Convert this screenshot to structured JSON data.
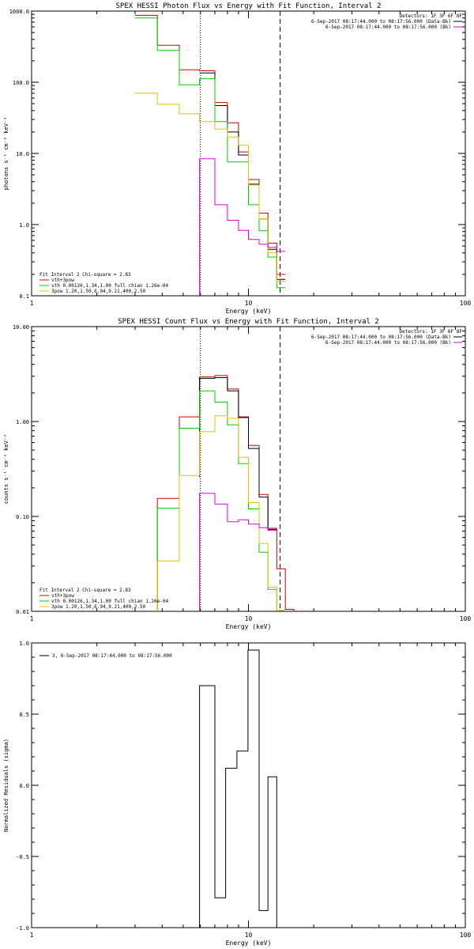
{
  "chart_data": [
    {
      "type": "line",
      "step": true,
      "title": "SPEX HESSI Photon Flux vs Energy with Fit Function, Interval 2",
      "xlabel": "Energy (keV)",
      "ylabel": "photons s⁻¹ cm⁻² keV⁻¹",
      "xscale": "log",
      "yscale": "log",
      "xlim": [
        1,
        100
      ],
      "ylim": [
        0.1,
        1000
      ],
      "xticks": [
        {
          "v": 1,
          "label": "1"
        },
        {
          "v": 10,
          "label": "10"
        },
        {
          "v": 100,
          "label": "100"
        }
      ],
      "yticks": [
        {
          "v": 0.1,
          "label": "0.1"
        },
        {
          "v": 1,
          "label": "1.0"
        },
        {
          "v": 10,
          "label": "10.0"
        },
        {
          "v": 100,
          "label": "100.0"
        },
        {
          "v": 1000,
          "label": "1000.0"
        }
      ],
      "vlines": [
        {
          "x": 6.0,
          "style": "dotted"
        },
        {
          "x": 14.0,
          "style": "dashed"
        }
      ],
      "top_legend": [
        {
          "text": "Detectors: 1F 3F 6F 8F",
          "color": "",
          "marker": false
        },
        {
          "text": "6-Sep-2017 08:17:44.000 to 08:17:56.000 (Data-Bk)",
          "color": "#000000",
          "marker": true
        },
        {
          "text": "6-Sep-2017 08:17:44.000 to 08:17:56.000 (Bk)",
          "color": "#dd00dd",
          "marker": true
        }
      ],
      "bottom_legend": [
        {
          "text": "Fit Interval 2   Chi-square = 2.83",
          "color": "",
          "marker": false
        },
        {
          "text": "vth+3pow",
          "color": "#cc0000",
          "marker": true
        },
        {
          "text": "vth 0.00126,1.34,1.00  full chian 1.26e-04",
          "color": "#00cc00",
          "marker": true
        },
        {
          "text": "3pow 1.20,1.50,6.94,9.21,400,2.50",
          "color": "#e8c000",
          "marker": true
        }
      ],
      "series": [
        {
          "name": "vth+3pow",
          "color": "#cc0000",
          "x": [
            3,
            3.8,
            3.8,
            4.8,
            4.8,
            5.95,
            5.95,
            7.0,
            7.0,
            8.0,
            8.0,
            9.0,
            9.0,
            10.0,
            10.0,
            11.2,
            11.2,
            12.3,
            12.3,
            13.5,
            13.5,
            14.8
          ],
          "y": [
            870,
            870,
            330,
            330,
            150,
            150,
            145,
            145,
            52,
            52,
            27,
            27,
            10.5,
            10.5,
            4.3,
            4.3,
            1.45,
            1.45,
            0.55,
            0.55,
            0.2,
            0.2
          ]
        },
        {
          "name": "Data-Bk",
          "color": "#000000",
          "x": [
            5.95,
            7.0,
            7.0,
            8.0,
            8.0,
            9.0,
            9.0,
            10.0,
            10.0,
            11.2,
            11.2,
            12.3,
            12.3,
            13.5,
            13.5,
            14.8
          ],
          "y": [
            135,
            135,
            47,
            47,
            20,
            20,
            9.5,
            9.5,
            3.7,
            3.7,
            1.2,
            1.2,
            0.45,
            0.45,
            0.17,
            0.17
          ]
        },
        {
          "name": "vth",
          "color": "#00cc00",
          "x": [
            3,
            3.8,
            3.8,
            4.8,
            4.8,
            5.95,
            5.95,
            7.0,
            7.0,
            8.0,
            8.0,
            9.0,
            9.0,
            10.0,
            10.0,
            11.2,
            11.2,
            12.3,
            12.3,
            13.5,
            13.5,
            14.8
          ],
          "y": [
            800,
            800,
            280,
            280,
            92,
            92,
            112,
            112,
            28,
            28,
            7.6,
            7.6,
            7.6,
            7.6,
            1.9,
            1.9,
            0.82,
            0.82,
            0.35,
            0.35,
            0.13,
            0.13
          ]
        },
        {
          "name": "3pow",
          "color": "#e8c000",
          "x": [
            3,
            3.8,
            3.8,
            4.8,
            4.8,
            5.95,
            5.95,
            7.0,
            7.0,
            8.0,
            8.0,
            9.0,
            9.0,
            10.0,
            10.0,
            11.2,
            11.2,
            12.3,
            12.3,
            13.5,
            13.5,
            14.8
          ],
          "y": [
            70,
            70,
            49,
            49,
            36,
            36,
            28,
            28,
            22,
            22,
            17,
            17,
            13,
            13,
            3.6,
            3.6,
            1.2,
            1.2,
            0.4,
            0.4,
            0.16,
            0.16
          ]
        },
        {
          "name": "Bk",
          "color": "#dd00dd",
          "x": [
            5.95,
            5.95,
            7.0,
            7.0,
            8.0,
            8.0,
            9.0,
            9.0,
            10.0,
            10.0,
            11.2,
            11.2,
            12.3,
            12.3,
            13.5,
            13.5,
            14.8
          ],
          "y": [
            0.1,
            8.4,
            8.4,
            1.9,
            1.9,
            1.15,
            1.15,
            0.83,
            0.83,
            0.62,
            0.62,
            0.53,
            0.53,
            0.48,
            0.48,
            0.42,
            0.42
          ]
        }
      ]
    },
    {
      "type": "line",
      "step": true,
      "title": "SPEX HESSI Count Flux vs Energy with Fit Function, Interval 2",
      "xlabel": "Energy (keV)",
      "ylabel": "counts s⁻¹ cm⁻² keV⁻¹",
      "xscale": "log",
      "yscale": "log",
      "xlim": [
        1,
        100
      ],
      "ylim": [
        0.01,
        10
      ],
      "xticks": [
        {
          "v": 1,
          "label": "1"
        },
        {
          "v": 10,
          "label": "10"
        },
        {
          "v": 100,
          "label": "100"
        }
      ],
      "yticks": [
        {
          "v": 0.01,
          "label": "0.01"
        },
        {
          "v": 0.1,
          "label": "0.10"
        },
        {
          "v": 1,
          "label": "1.00"
        },
        {
          "v": 10,
          "label": "10.00"
        }
      ],
      "vlines": [
        {
          "x": 6.0,
          "style": "dotted"
        },
        {
          "x": 14.0,
          "style": "dashed"
        }
      ],
      "top_legend": [
        {
          "text": "Detectors: 1F 3F 6F 8F",
          "color": "",
          "marker": false
        },
        {
          "text": "6-Sep-2017 08:17:44.000 to 08:17:56.000 (Data-Bk)",
          "color": "#000000",
          "marker": true
        },
        {
          "text": "6-Sep-2017 08:17:44.000 to 08:17:56.000 (Bk)",
          "color": "#dd00dd",
          "marker": true
        }
      ],
      "bottom_legend": [
        {
          "text": "Fit Interval 2   Chi-square = 2.83",
          "color": "",
          "marker": false
        },
        {
          "text": "vth+3pow",
          "color": "#cc0000",
          "marker": true
        },
        {
          "text": "vth 0.00126,1.34,1.00  full chian 1.26e-04",
          "color": "#00cc00",
          "marker": true
        },
        {
          "text": "3pow 1.20,1.50,6.94,9.21,400,2.50",
          "color": "#e8c000",
          "marker": true
        }
      ],
      "series": [
        {
          "name": "vth+3pow",
          "color": "#cc0000",
          "x": [
            3.8,
            3.8,
            4.8,
            4.8,
            5.95,
            5.95,
            7.0,
            7.0,
            8.0,
            8.0,
            9.0,
            9.0,
            10.0,
            10.0,
            11.2,
            11.2,
            12.3,
            12.3,
            13.5,
            13.5,
            14.8,
            14.8,
            16.2,
            16.2
          ],
          "y": [
            0.01,
            0.155,
            0.155,
            1.12,
            1.12,
            2.95,
            2.95,
            3.05,
            3.05,
            2.2,
            2.2,
            1.12,
            1.12,
            0.56,
            0.56,
            0.17,
            0.17,
            0.075,
            0.075,
            0.028,
            0.028,
            0.0105,
            0.0105,
            0.01
          ]
        },
        {
          "name": "Data-Bk",
          "color": "#000000",
          "x": [
            5.95,
            5.95,
            7.0,
            7.0,
            8.0,
            8.0,
            9.0,
            9.0,
            10.0,
            10.0,
            11.2,
            11.2,
            12.3,
            12.3,
            13.5
          ],
          "y": [
            0.26,
            2.85,
            2.85,
            2.9,
            2.9,
            2.1,
            2.1,
            1.1,
            1.1,
            0.52,
            0.52,
            0.16,
            0.16,
            0.073,
            0.073
          ]
        },
        {
          "name": "vth",
          "color": "#00cc00",
          "x": [
            3.8,
            3.8,
            4.8,
            4.8,
            5.95,
            5.95,
            7.0,
            7.0,
            8.0,
            8.0,
            9.0,
            9.0,
            10.0,
            10.0,
            11.2,
            11.2,
            12.3,
            12.3,
            13.5,
            13.5
          ],
          "y": [
            0.01,
            0.122,
            0.122,
            0.85,
            0.85,
            2.1,
            2.1,
            1.6,
            1.6,
            0.92,
            0.92,
            0.36,
            0.36,
            0.12,
            0.12,
            0.042,
            0.042,
            0.017,
            0.017,
            0.01
          ]
        },
        {
          "name": "3pow",
          "color": "#e8c000",
          "x": [
            3.8,
            3.8,
            4.8,
            4.8,
            5.95,
            5.95,
            7.0,
            7.0,
            8.0,
            8.0,
            9.0,
            9.0,
            10.0,
            10.0,
            11.2,
            11.2,
            12.3,
            12.3,
            13.5,
            13.5,
            14.8,
            14.8
          ],
          "y": [
            0.01,
            0.034,
            0.034,
            0.27,
            0.27,
            0.78,
            0.78,
            1.15,
            1.15,
            1.08,
            1.08,
            0.42,
            0.42,
            0.14,
            0.14,
            0.052,
            0.052,
            0.018,
            0.018,
            0.0102,
            0.0102,
            0.01
          ]
        },
        {
          "name": "Bk",
          "color": "#dd00dd",
          "x": [
            5.95,
            5.95,
            7.0,
            7.0,
            8.0,
            8.0,
            9.0,
            9.0,
            10.0,
            10.0,
            11.2,
            11.2,
            12.3,
            12.3,
            13.5
          ],
          "y": [
            0.01,
            0.175,
            0.175,
            0.135,
            0.135,
            0.088,
            0.088,
            0.092,
            0.092,
            0.083,
            0.083,
            0.076,
            0.076,
            0.071,
            0.071
          ]
        }
      ]
    },
    {
      "type": "line",
      "step": true,
      "title": "",
      "xlabel": "Energy (keV)",
      "ylabel": "Normalized Residuals (sigma)",
      "xscale": "log",
      "yscale": "linear",
      "xlim": [
        1,
        100
      ],
      "ylim": [
        -1,
        1
      ],
      "xticks": [
        {
          "v": 1,
          "label": "1"
        },
        {
          "v": 10,
          "label": "10"
        },
        {
          "v": 100,
          "label": "100"
        }
      ],
      "yticks": [
        {
          "v": -1,
          "label": "-1.0"
        },
        {
          "v": -0.5,
          "label": "-0.5"
        },
        {
          "v": 0,
          "label": "0.0"
        },
        {
          "v": 0.5,
          "label": "0.5"
        },
        {
          "v": 1,
          "label": "1.0"
        }
      ],
      "vlines": [],
      "top_legend": [],
      "bottom_legend": [],
      "topleft_legend": [
        {
          "text": "3, 6-Sep-2017 08:17:44.000 to 08:17:56.000",
          "color": "#000000",
          "marker": true
        }
      ],
      "series": [
        {
          "name": "3, 6-Sep-2017 08:17:44.000 to 08:17:56.000",
          "color": "#000000",
          "x": [
            5.95,
            5.95,
            7.0,
            7.0,
            7.85,
            7.85,
            8.85,
            8.85,
            9.95,
            9.95,
            11.2,
            11.2,
            12.3,
            12.3,
            13.5,
            13.5
          ],
          "y": [
            -1,
            0.7,
            0.7,
            -0.79,
            -0.79,
            0.12,
            0.12,
            0.24,
            0.24,
            0.95,
            0.95,
            -0.88,
            -0.88,
            0.06,
            0.06,
            -1
          ]
        }
      ]
    }
  ]
}
